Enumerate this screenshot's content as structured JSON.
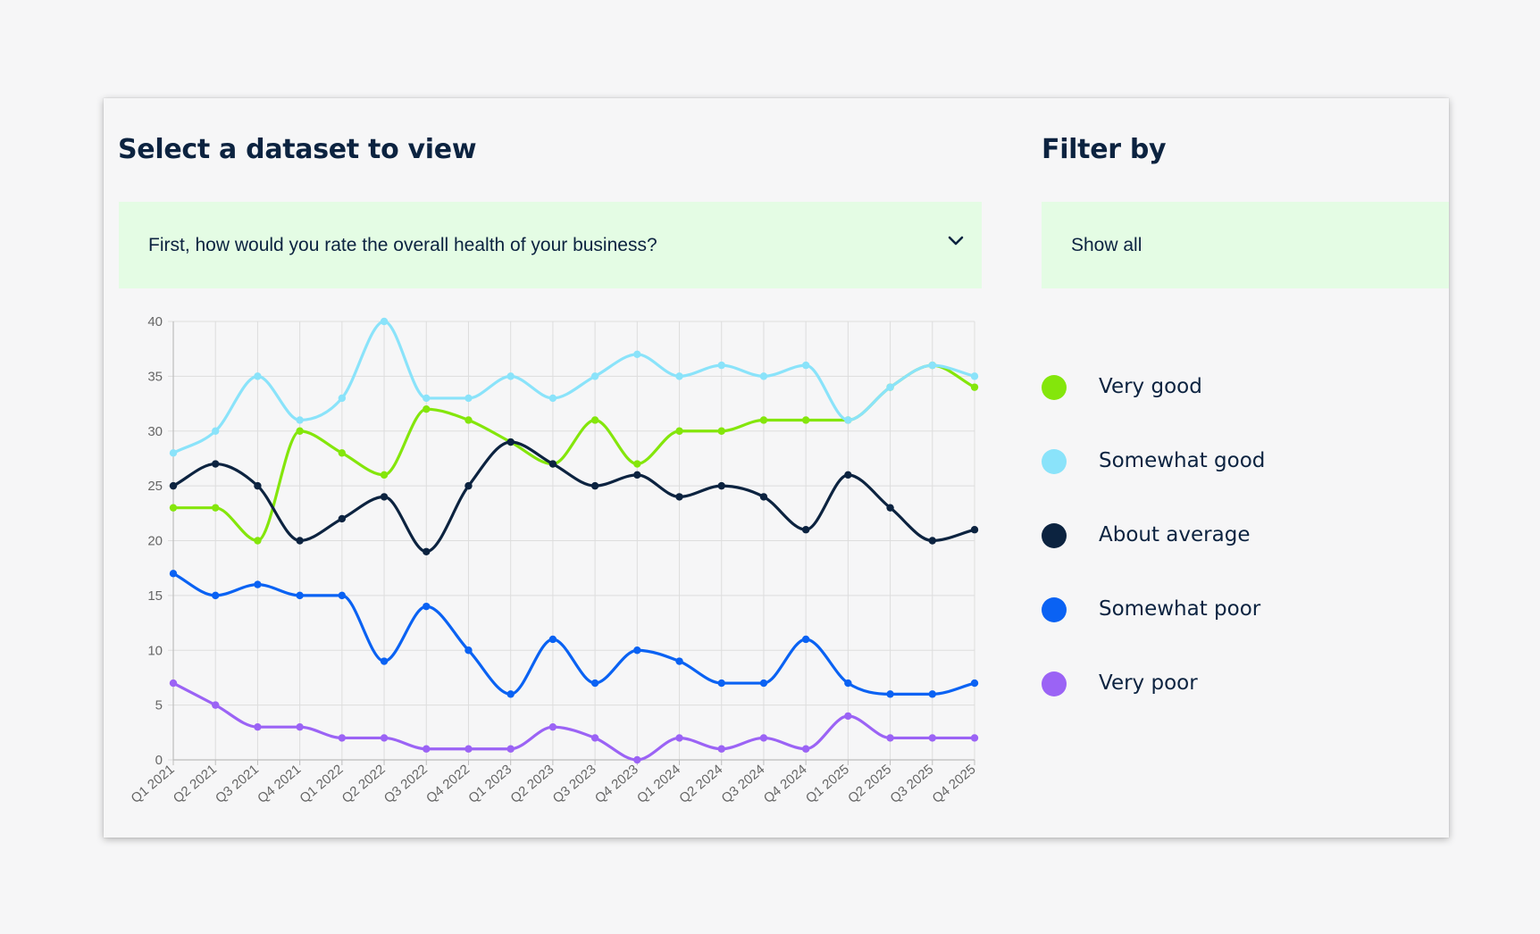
{
  "dataset": {
    "heading": "Select a dataset to view",
    "selected": "First, how would you rate the overall health of your business?"
  },
  "filter": {
    "heading": "Filter by",
    "selected": "Show all"
  },
  "colors": {
    "background": "#f6f6f7",
    "select_background": "#e4fce4",
    "heading_text": "#0c2340",
    "grid": "#dddddd"
  },
  "chart_data": {
    "type": "line",
    "title": "",
    "xlabel": "",
    "ylabel": "",
    "ylim": [
      0,
      40
    ],
    "yticks": [
      0,
      5,
      10,
      15,
      20,
      25,
      30,
      35,
      40
    ],
    "grid": true,
    "legend_position": "right",
    "categories": [
      "Q1 2021",
      "Q2 2021",
      "Q3 2021",
      "Q4 2021",
      "Q1 2022",
      "Q2 2022",
      "Q3 2022",
      "Q4 2022",
      "Q1 2023",
      "Q2 2023",
      "Q3 2023",
      "Q4 2023",
      "Q1 2024",
      "Q2 2024",
      "Q3 2024",
      "Q4 2024",
      "Q1 2025",
      "Q2 2025",
      "Q3 2025",
      "Q4 2025"
    ],
    "series": [
      {
        "name": "Very good",
        "color": "#84e60b",
        "values": [
          23,
          23,
          20,
          30,
          28,
          26,
          32,
          31,
          29,
          27,
          31,
          27,
          30,
          30,
          31,
          31,
          31,
          34,
          36,
          34
        ]
      },
      {
        "name": "Somewhat good",
        "color": "#8ae3fa",
        "values": [
          28,
          30,
          35,
          31,
          33,
          40,
          33,
          33,
          35,
          33,
          35,
          37,
          35,
          36,
          35,
          36,
          31,
          34,
          36,
          35
        ]
      },
      {
        "name": "About average",
        "color": "#0c2340",
        "values": [
          25,
          27,
          25,
          20,
          22,
          24,
          19,
          25,
          29,
          27,
          25,
          26,
          24,
          25,
          24,
          21,
          26,
          23,
          20,
          21
        ]
      },
      {
        "name": "Somewhat poor",
        "color": "#0a62f3",
        "values": [
          17,
          15,
          16,
          15,
          15,
          9,
          14,
          10,
          6,
          11,
          7,
          10,
          9,
          7,
          7,
          11,
          7,
          6,
          6,
          7
        ]
      },
      {
        "name": "Very poor",
        "color": "#9b63f5",
        "values": [
          7,
          5,
          3,
          3,
          2,
          2,
          1,
          1,
          1,
          3,
          2,
          0,
          2,
          1,
          2,
          1,
          4,
          2,
          2,
          2
        ]
      }
    ]
  }
}
